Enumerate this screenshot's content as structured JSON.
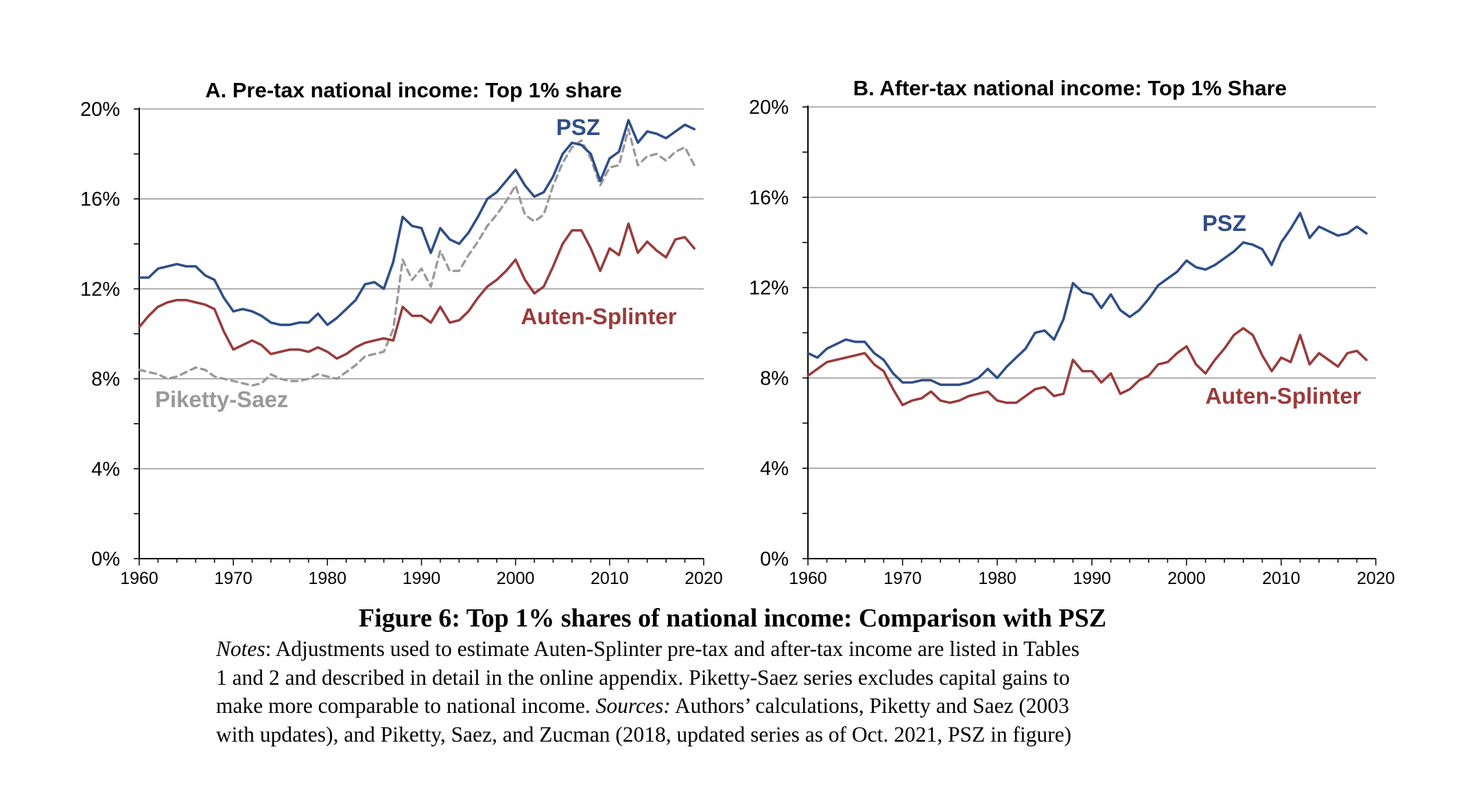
{
  "chart_data": [
    {
      "type": "line",
      "title": "A. Pre-tax national income: Top 1% share",
      "xlim": [
        1960,
        2020
      ],
      "ylim": [
        0,
        20
      ],
      "x_ticks": [
        "1960",
        "1970",
        "1980",
        "1990",
        "2000",
        "2010",
        "2020"
      ],
      "y_ticks": [
        "0%",
        "4%",
        "8%",
        "12%",
        "16%",
        "20%"
      ],
      "grid": "horizontal",
      "x": [
        1960,
        1961,
        1962,
        1963,
        1964,
        1965,
        1966,
        1967,
        1968,
        1969,
        1970,
        1971,
        1972,
        1973,
        1974,
        1975,
        1976,
        1977,
        1978,
        1979,
        1980,
        1981,
        1982,
        1983,
        1984,
        1985,
        1986,
        1987,
        1988,
        1989,
        1990,
        1991,
        1992,
        1993,
        1994,
        1995,
        1996,
        1997,
        1998,
        1999,
        2000,
        2001,
        2002,
        2003,
        2004,
        2005,
        2006,
        2007,
        2008,
        2009,
        2010,
        2011,
        2012,
        2013,
        2014,
        2015,
        2016,
        2017,
        2018,
        2019
      ],
      "series": [
        {
          "name": "PSZ",
          "color": "#2f4e87",
          "style": "solid",
          "values": [
            12.5,
            12.5,
            12.9,
            13.0,
            13.1,
            13.0,
            13.0,
            12.6,
            12.4,
            11.6,
            11.0,
            11.1,
            11.0,
            10.8,
            10.5,
            10.4,
            10.4,
            10.5,
            10.5,
            10.9,
            10.4,
            10.7,
            11.1,
            11.5,
            12.2,
            12.3,
            12.0,
            13.2,
            15.2,
            14.8,
            14.7,
            13.6,
            14.7,
            14.2,
            14.0,
            14.5,
            15.2,
            16.0,
            16.3,
            16.8,
            17.3,
            16.6,
            16.1,
            16.3,
            17.0,
            18.0,
            18.5,
            18.4,
            18.0,
            16.8,
            17.8,
            18.1,
            19.5,
            18.5,
            19.0,
            18.9,
            18.7,
            19.0,
            19.3,
            19.1
          ]
        },
        {
          "name": "Auten-Splinter",
          "color": "#993b3b",
          "style": "solid",
          "values": [
            10.3,
            10.8,
            11.2,
            11.4,
            11.5,
            11.5,
            11.4,
            11.3,
            11.1,
            10.1,
            9.3,
            9.5,
            9.7,
            9.5,
            9.1,
            9.2,
            9.3,
            9.3,
            9.2,
            9.4,
            9.2,
            8.9,
            9.1,
            9.4,
            9.6,
            9.7,
            9.8,
            9.7,
            11.2,
            10.8,
            10.8,
            10.5,
            11.2,
            10.5,
            10.6,
            11.0,
            11.6,
            12.1,
            12.4,
            12.8,
            13.3,
            12.4,
            11.8,
            12.1,
            13.0,
            14.0,
            14.6,
            14.6,
            13.8,
            12.8,
            13.8,
            13.5,
            14.9,
            13.6,
            14.1,
            13.7,
            13.4,
            14.2,
            14.3,
            13.8
          ]
        },
        {
          "name": "Piketty-Saez",
          "color": "#999999",
          "style": "dashed",
          "values": [
            8.4,
            8.3,
            8.2,
            8.0,
            8.1,
            8.3,
            8.5,
            8.4,
            8.1,
            8.0,
            7.9,
            7.8,
            7.7,
            7.8,
            8.2,
            8.0,
            7.9,
            7.9,
            8.0,
            8.2,
            8.1,
            8.0,
            8.3,
            8.6,
            9.0,
            9.1,
            9.2,
            10.2,
            13.3,
            12.4,
            12.9,
            12.1,
            13.7,
            12.8,
            12.8,
            13.5,
            14.1,
            14.8,
            15.3,
            15.9,
            16.6,
            15.3,
            15.0,
            15.3,
            16.6,
            17.6,
            18.3,
            18.6,
            17.8,
            16.6,
            17.4,
            17.5,
            19.1,
            17.5,
            17.9,
            18.0,
            17.7,
            18.1,
            18.3,
            17.5
          ]
        }
      ]
    },
    {
      "type": "line",
      "title": "B. After-tax national income: Top 1% Share",
      "xlim": [
        1960,
        2020
      ],
      "ylim": [
        0,
        20
      ],
      "x_ticks": [
        "1960",
        "1970",
        "1980",
        "1990",
        "2000",
        "2010",
        "2020"
      ],
      "y_ticks": [
        "0%",
        "4%",
        "8%",
        "12%",
        "16%",
        "20%"
      ],
      "grid": "horizontal",
      "x": [
        1960,
        1961,
        1962,
        1963,
        1964,
        1965,
        1966,
        1967,
        1968,
        1969,
        1970,
        1971,
        1972,
        1973,
        1974,
        1975,
        1976,
        1977,
        1978,
        1979,
        1980,
        1981,
        1982,
        1983,
        1984,
        1985,
        1986,
        1987,
        1988,
        1989,
        1990,
        1991,
        1992,
        1993,
        1994,
        1995,
        1996,
        1997,
        1998,
        1999,
        2000,
        2001,
        2002,
        2003,
        2004,
        2005,
        2006,
        2007,
        2008,
        2009,
        2010,
        2011,
        2012,
        2013,
        2014,
        2015,
        2016,
        2017,
        2018,
        2019
      ],
      "series": [
        {
          "name": "PSZ",
          "color": "#2f4e87",
          "style": "solid",
          "values": [
            9.1,
            8.9,
            9.3,
            9.5,
            9.7,
            9.6,
            9.6,
            9.1,
            8.8,
            8.2,
            7.8,
            7.8,
            7.9,
            7.9,
            7.7,
            7.7,
            7.7,
            7.8,
            8.0,
            8.4,
            8.0,
            8.5,
            8.9,
            9.3,
            10.0,
            10.1,
            9.7,
            10.6,
            12.2,
            11.8,
            11.7,
            11.1,
            11.7,
            11.0,
            10.7,
            11.0,
            11.5,
            12.1,
            12.4,
            12.7,
            13.2,
            12.9,
            12.8,
            13.0,
            13.3,
            13.6,
            14.0,
            13.9,
            13.7,
            13.0,
            14.0,
            14.6,
            15.3,
            14.2,
            14.7,
            14.5,
            14.3,
            14.4,
            14.7,
            14.4
          ]
        },
        {
          "name": "Auten-Splinter",
          "color": "#993b3b",
          "style": "solid",
          "values": [
            8.1,
            8.4,
            8.7,
            8.8,
            8.9,
            9.0,
            9.1,
            8.6,
            8.3,
            7.5,
            6.8,
            7.0,
            7.1,
            7.4,
            7.0,
            6.9,
            7.0,
            7.2,
            7.3,
            7.4,
            7.0,
            6.9,
            6.9,
            7.2,
            7.5,
            7.6,
            7.2,
            7.3,
            8.8,
            8.3,
            8.3,
            7.8,
            8.2,
            7.3,
            7.5,
            7.9,
            8.1,
            8.6,
            8.7,
            9.1,
            9.4,
            8.6,
            8.2,
            8.8,
            9.3,
            9.9,
            10.2,
            9.9,
            9.0,
            8.3,
            8.9,
            8.7,
            9.9,
            8.6,
            9.1,
            8.8,
            8.5,
            9.1,
            9.2,
            8.8
          ]
        }
      ]
    }
  ],
  "caption": {
    "title": "Figure 6: Top 1% shares of national income: Comparison with PSZ",
    "notes_label": "Notes",
    "notes_l1": ": Adjustments used to estimate Auten-Splinter pre-tax and after-tax income are listed in Tables",
    "notes_l2": "1 and 2 and described in detail in the online appendix. Piketty-Saez series excludes capital gains to",
    "notes_l3a": "make more comparable to national income. ",
    "sources_label": "Sources:",
    "notes_l3b": " Authors’ calculations, Piketty and Saez (2003",
    "notes_l4": "with updates), and Piketty, Saez, and Zucman (2018, updated series as of Oct. 2021, PSZ in figure)"
  }
}
